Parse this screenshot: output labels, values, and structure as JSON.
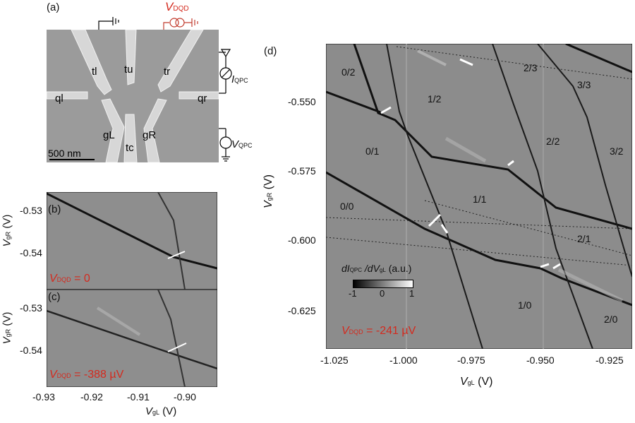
{
  "panel_a": {
    "label": "(a)",
    "gates": {
      "tl": "tl",
      "tu": "tu",
      "tr": "tr",
      "ql": "ql",
      "qr": "qr",
      "gL": "gL",
      "tc": "tc",
      "gR": "gR"
    },
    "scalebar": "500 nm",
    "vdqd_main": "V",
    "vdqd_sub": "DQD",
    "iqpc_main": "I",
    "iqpc_sub": "QPC",
    "vqpc_main": "V",
    "vqpc_sub": "QPC"
  },
  "panel_b": {
    "label": "(b)",
    "annotation": "V",
    "annotation_sub": "DQD",
    "annotation_value": " = 0",
    "yticks": [
      "-0.53",
      "-0.54"
    ]
  },
  "panel_c": {
    "label": "(c)",
    "annotation": "V",
    "annotation_sub": "DQD",
    "annotation_value": " = -388 µV",
    "yticks": [
      "-0.53",
      "-0.54"
    ],
    "xticks": [
      "-0.93",
      "-0.92",
      "-0.91",
      "-0.90"
    ]
  },
  "panel_bc_axes": {
    "ylabel_main": "V",
    "ylabel_sub": "gR",
    "ylabel_unit": " (V)",
    "xlabel_main": "V",
    "xlabel_sub": "gL",
    "xlabel_unit": " (V)"
  },
  "panel_d": {
    "label": "(d)",
    "annotation": "V",
    "annotation_sub": "DQD",
    "annotation_value": " = -241 µV",
    "yticks": [
      "-0.550",
      "-0.575",
      "-0.600",
      "-0.625"
    ],
    "xticks": [
      "-1.025",
      "-1.000",
      "-0.975",
      "-0.950",
      "-0.925"
    ],
    "ylabel_main": "V",
    "ylabel_sub": "gR",
    "ylabel_unit": " (V)",
    "xlabel_main": "V",
    "xlabel_sub": "gL",
    "xlabel_unit": " (V)",
    "colorbar_title_1": "dI",
    "colorbar_title_sub1": "QPC",
    "colorbar_title_2": " /dV",
    "colorbar_title_sub2": "gL",
    "colorbar_title_3": " (a.u.)",
    "colorbar_ticks": [
      "-1",
      "0",
      "1"
    ],
    "charge_states": [
      "0/2",
      "1/2",
      "2/3",
      "3/3",
      "0/1",
      "2/2",
      "3/2",
      "1/1",
      "0/0",
      "2/1",
      "1/0",
      "2/0"
    ]
  },
  "chart_data": [
    {
      "type": "heatmap",
      "panel": "b",
      "xlim": [
        -0.93,
        -0.894
      ],
      "ylim": [
        -0.547,
        -0.5265
      ],
      "annotation": "VDQD = 0"
    },
    {
      "type": "heatmap",
      "panel": "c",
      "xlim": [
        -0.93,
        -0.894
      ],
      "ylim": [
        -0.547,
        -0.5265
      ],
      "annotation": "VDQD = -388 µV"
    },
    {
      "type": "heatmap",
      "panel": "d",
      "xlim": [
        -1.03,
        -0.92
      ],
      "ylim": [
        -0.6375,
        -0.5335
      ],
      "annotation": "VDQD = -241 µV",
      "colorbar_range": [
        -1,
        1
      ]
    }
  ]
}
